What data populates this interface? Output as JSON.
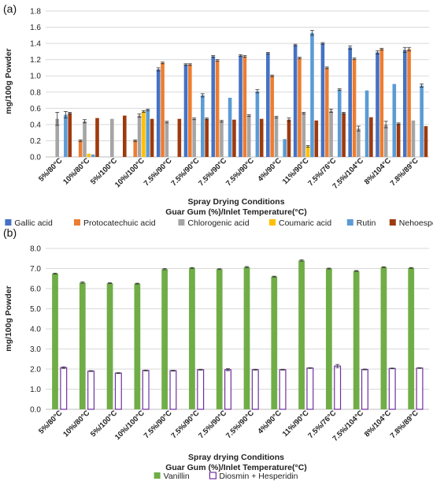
{
  "chart_data": [
    {
      "type": "bar",
      "panel_label": "(a)",
      "ylabel": "mg/100g Powder",
      "xlabel": "Spray Drying Conditions",
      "xlabel2": "Guar Gum (%)/Inlet Temperature(°C)",
      "ylim": [
        0,
        1.8
      ],
      "yticks": [
        "0.0",
        "0.2",
        "0.4",
        "0.6",
        "0.8",
        "1.0",
        "1.2",
        "1.4",
        "1.6",
        "1.8"
      ],
      "grid": true,
      "legend_position": "bottom",
      "categories": [
        "5%/80°C",
        "10%/80°C",
        "5%/100°C",
        "10%/100°C",
        "7.5%/90°C",
        "7.5%/90°C",
        "7.5%/90°C",
        "7.5%/90°C",
        "4%/90°C",
        "11%/90°C",
        "7.5%/76°C",
        "7.5%/104°C",
        "8%/104°C",
        "7.8%/89°C"
      ],
      "series": [
        {
          "name": "Gallic acid",
          "color": "#4472C4",
          "values": [
            0,
            0,
            0,
            0,
            1.08,
            1.14,
            1.24,
            1.25,
            1.28,
            1.38,
            1.4,
            1.35,
            1.29,
            1.32
          ],
          "errors": [
            0,
            0,
            0,
            0,
            0.02,
            0.01,
            0.01,
            0.01,
            0.01,
            0.01,
            0.01,
            0.02,
            0.02,
            0.03
          ]
        },
        {
          "name": "Protocatechuic acid",
          "color": "#ED7D31",
          "values": [
            0,
            0.2,
            0,
            0.2,
            1.16,
            1.14,
            1.19,
            1.24,
            1.0,
            1.22,
            1.1,
            1.21,
            1.33,
            1.33
          ],
          "errors": [
            0,
            0.01,
            0,
            0.01,
            0.01,
            0.01,
            0.01,
            0.01,
            0.01,
            0.01,
            0.01,
            0.01,
            0.01,
            0.02
          ]
        },
        {
          "name": "Chlorogenic acid",
          "color": "#A5A5A5",
          "values": [
            0.47,
            0.44,
            0.47,
            0.51,
            0.43,
            0.47,
            0.44,
            0.51,
            0.49,
            0.54,
            0.57,
            0.35,
            0.4,
            0.45
          ],
          "errors": [
            0.08,
            0.02,
            0,
            0.02,
            0.01,
            0.01,
            0.01,
            0.01,
            0.01,
            0.01,
            0.02,
            0.03,
            0.04,
            0
          ]
        },
        {
          "name": "Coumaric acid",
          "color": "#FFC000",
          "values": [
            0,
            0.04,
            0,
            0.56,
            0,
            0,
            0,
            0,
            0,
            0.13,
            0,
            0,
            0,
            0
          ],
          "errors": [
            0,
            0,
            0,
            0.01,
            0,
            0,
            0,
            0,
            0,
            0.01,
            0,
            0,
            0,
            0
          ]
        },
        {
          "name": "Rutin",
          "color": "#5B9BD5",
          "values": [
            0.52,
            0.03,
            0,
            0.58,
            0,
            0.76,
            0.73,
            0.81,
            0.22,
            1.53,
            0.83,
            0.82,
            0.9,
            0.88
          ],
          "errors": [
            0.04,
            0,
            0,
            0.01,
            0,
            0.02,
            0,
            0.02,
            0,
            0.03,
            0.01,
            0,
            0,
            0.02
          ]
        },
        {
          "name": "Nehoesperidin",
          "color": "#9E3A0F",
          "values": [
            0.54,
            0.48,
            0.51,
            0.47,
            0.47,
            0.47,
            0.46,
            0.47,
            0.46,
            0.45,
            0.54,
            0.49,
            0.41,
            0.38
          ],
          "errors": [
            0.01,
            0,
            0,
            0,
            0,
            0.01,
            0,
            0,
            0.02,
            0,
            0.01,
            0,
            0.01,
            0
          ]
        }
      ]
    },
    {
      "type": "bar",
      "panel_label": "(b)",
      "ylabel": "mg/100g Powder",
      "xlabel": "Spray drying Conditions",
      "xlabel2": "Guar Gum (%)/Inlet Temperature(°C)",
      "ylim": [
        0,
        8.0
      ],
      "yticks": [
        "0.0",
        "1.0",
        "2.0",
        "3.0",
        "4.0",
        "5.0",
        "6.0",
        "7.0",
        "8.0"
      ],
      "grid": true,
      "legend_position": "bottom",
      "categories": [
        "5%/80°C",
        "10%/80°C",
        "5%/100°C",
        "10%/100°C",
        "7.5%/90°C",
        "7.5%/90°C",
        "7.5%/90°C",
        "7.5%/90°C",
        "4%/90°C",
        "11%/90°C",
        "7.5%/76°C",
        "7.5%/104°C",
        "8%/104°C",
        "7.8%/89°C"
      ],
      "series": [
        {
          "name": "Vanillin",
          "color": "#70AD47",
          "values": [
            6.75,
            6.3,
            6.27,
            6.25,
            6.97,
            7.03,
            6.97,
            7.07,
            6.6,
            7.4,
            7.0,
            6.88,
            7.07,
            7.03
          ],
          "errors": [
            0.02,
            0.03,
            0.02,
            0.02,
            0.03,
            0.02,
            0.02,
            0.03,
            0.02,
            0.03,
            0.02,
            0.02,
            0.02,
            0.02
          ]
        },
        {
          "name": "Diosmin + Hesperidin",
          "color": "#7030A0",
          "hollow": true,
          "values": [
            2.07,
            1.9,
            1.8,
            1.93,
            1.92,
            1.97,
            1.97,
            1.97,
            1.97,
            2.05,
            2.15,
            1.98,
            2.03,
            2.05
          ],
          "errors": [
            0.04,
            0.02,
            0.02,
            0.02,
            0.02,
            0.02,
            0.05,
            0.02,
            0.02,
            0.02,
            0.08,
            0.02,
            0.02,
            0.02
          ]
        }
      ]
    }
  ]
}
